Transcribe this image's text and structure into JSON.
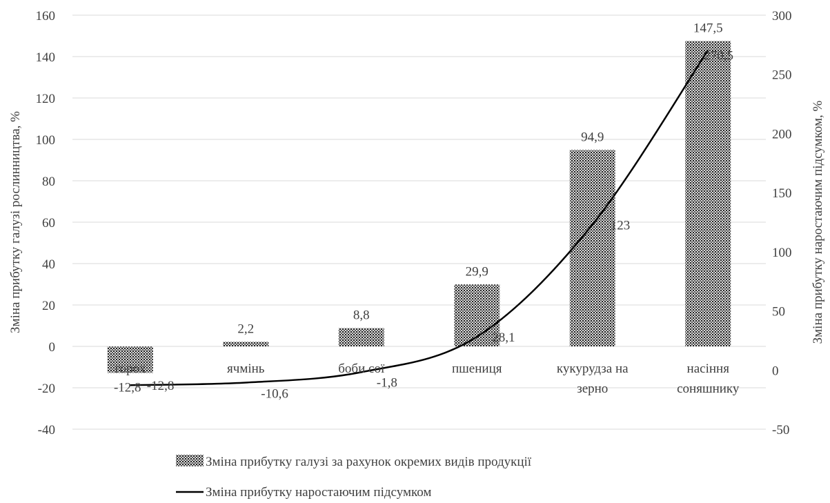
{
  "chart_data": {
    "type": "bar",
    "categories": [
      [
        "горох"
      ],
      [
        "ячмінь"
      ],
      [
        "боби сої"
      ],
      [
        "пшениця"
      ],
      [
        "кукурудза на",
        "зерно"
      ],
      [
        "насіння",
        "соняшнику"
      ]
    ],
    "series": [
      {
        "name": "Зміна прибутку галузі за рахунок окремих видів продукції",
        "type": "bar",
        "axis": "left",
        "values": [
          -12.8,
          2.2,
          8.8,
          29.9,
          94.9,
          147.5
        ],
        "labels": [
          "-12,8",
          "2,2",
          "8,8",
          "29,9",
          "94,9",
          "147,5"
        ]
      },
      {
        "name": "Зміна прибутку наростаючим підсумком",
        "type": "line",
        "axis": "right",
        "values": [
          -12.8,
          -10.6,
          -1.8,
          28.1,
          123,
          270.5
        ],
        "labels": [
          "-12,8",
          "-10,6",
          "-1,8",
          "28,1",
          "123",
          "270,5"
        ]
      }
    ],
    "y_left": {
      "label": "Зміна прибутку  галузі рослинництва, %",
      "ylim": [
        -40,
        160
      ],
      "ticks": [
        -40,
        -20,
        0,
        20,
        40,
        60,
        80,
        100,
        120,
        140,
        160
      ]
    },
    "y_right": {
      "label": "Зміна прибутку наростаючим підсумком, %",
      "ylim": [
        -50,
        300
      ],
      "ticks": [
        -50,
        0,
        50,
        100,
        150,
        200,
        250,
        300
      ]
    },
    "grid": true,
    "legend": "bottom"
  }
}
